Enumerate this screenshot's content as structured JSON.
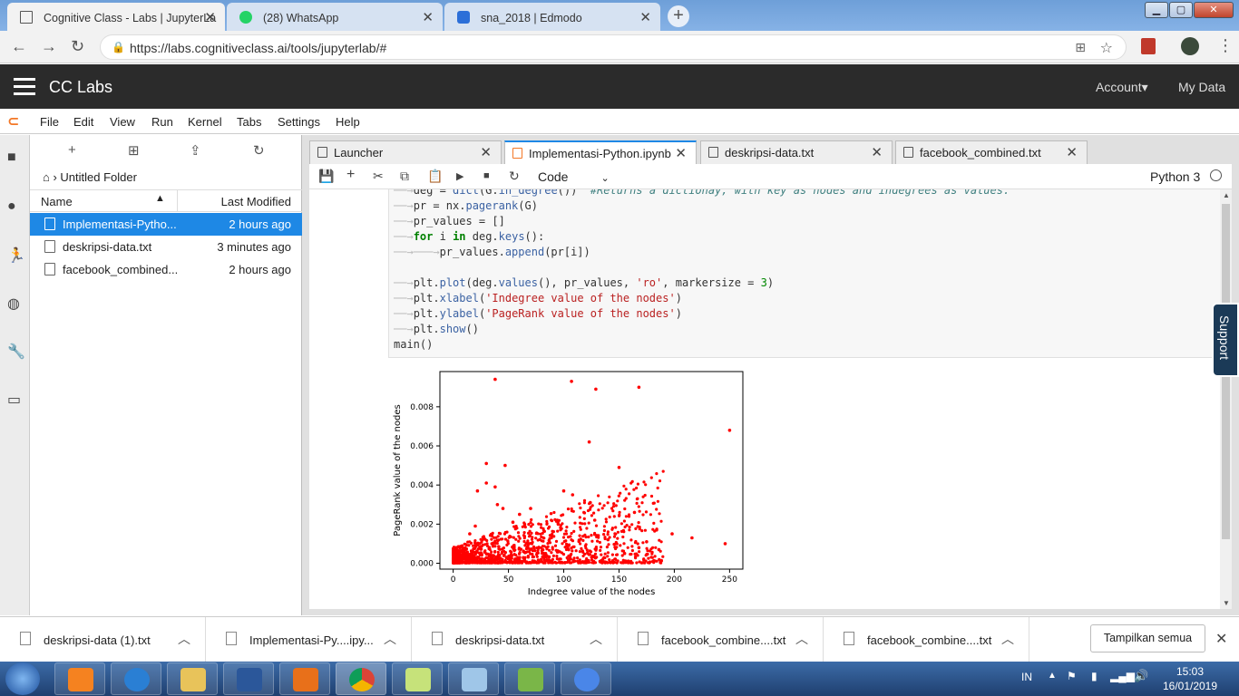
{
  "browser": {
    "tabs": [
      {
        "title": "Cognitive Class - Labs | JupyterLa",
        "favicon_color": "#f58220"
      },
      {
        "title": "(28) WhatsApp",
        "favicon_color": "#25d366"
      },
      {
        "title": "sna_2018 | Edmodo",
        "favicon_color": "#2c6fd8"
      }
    ],
    "url": "https://labs.cognitiveclass.ai/tools/jupyterlab/#"
  },
  "header": {
    "title": "CC Labs",
    "account": "Account",
    "mydata": "My Data"
  },
  "menubar": [
    "File",
    "Edit",
    "View",
    "Run",
    "Kernel",
    "Tabs",
    "Settings",
    "Help"
  ],
  "filebrowser": {
    "breadcrumb": "Untitled Folder",
    "col_name": "Name",
    "col_modified": "Last Modified",
    "files": [
      {
        "name": "Implementasi-Pytho...",
        "modified": "2 hours ago"
      },
      {
        "name": "deskripsi-data.txt",
        "modified": "3 minutes ago"
      },
      {
        "name": "facebook_combined...",
        "modified": "2 hours ago"
      }
    ]
  },
  "doc_tabs": [
    "Launcher",
    "Implementasi-Python.ipynb",
    "deskripsi-data.txt",
    "facebook_combined.txt"
  ],
  "nb_toolbar": {
    "cell_type": "Code",
    "kernel": "Python 3"
  },
  "code_lines": [
    "deg = dict(G.in_degree())  #Returns a dictionay, with key as nodes and indegrees as values.",
    "pr = nx.pagerank(G)",
    "pr_values = []",
    "for i in deg.keys():",
    "pr_values.append(pr[i])",
    "",
    "plt.plot(deg.values(), pr_values, 'ro', markersize = 3)",
    "plt.xlabel('Indegree value of the nodes')",
    "plt.ylabel('PageRank value of the nodes')",
    "plt.show()",
    "main()"
  ],
  "support_label": "Support",
  "chart_data": {
    "type": "scatter",
    "xlabel": "Indegree value of the nodes",
    "ylabel": "PageRank value of the nodes",
    "xlim": [
      -12,
      262
    ],
    "ylim": [
      -0.0003,
      0.0098
    ],
    "xticks": [
      "0",
      "50",
      "100",
      "150",
      "200",
      "250"
    ],
    "yticks": [
      "0.000",
      "0.002",
      "0.004",
      "0.006",
      "0.008"
    ],
    "xtick_values": [
      0,
      50,
      100,
      150,
      200,
      250
    ],
    "ytick_values": [
      0,
      0.002,
      0.004,
      0.006,
      0.008
    ],
    "color": "#ff0000",
    "outliers": [
      [
        38,
        0.0094
      ],
      [
        107,
        0.0093
      ],
      [
        129,
        0.0089
      ],
      [
        168,
        0.009
      ],
      [
        250,
        0.0068
      ],
      [
        123,
        0.0062
      ],
      [
        30,
        0.0051
      ],
      [
        47,
        0.005
      ],
      [
        150,
        0.0049
      ],
      [
        30,
        0.0041
      ],
      [
        38,
        0.0039
      ],
      [
        22,
        0.0037
      ],
      [
        100,
        0.0037
      ],
      [
        108,
        0.0035
      ],
      [
        40,
        0.003
      ],
      [
        124,
        0.0031
      ],
      [
        45,
        0.0028
      ],
      [
        70,
        0.0028
      ],
      [
        164,
        0.0026
      ],
      [
        184,
        0.0017
      ],
      [
        198,
        0.0015
      ],
      [
        216,
        0.0013
      ],
      [
        246,
        0.001
      ],
      [
        175,
        0.0011
      ],
      [
        155,
        0.0005
      ],
      [
        168,
        0.0008
      ],
      [
        186,
        0.0007
      ],
      [
        140,
        0.0012
      ],
      [
        128,
        0.0022
      ],
      [
        95,
        0.002
      ],
      [
        60,
        0.0025
      ],
      [
        54,
        0.0021
      ],
      [
        20,
        0.0019
      ],
      [
        15,
        0.0015
      ]
    ]
  },
  "downloads": [
    "deskripsi-data (1).txt",
    "Implementasi-Py....ipy...",
    "deskripsi-data.txt",
    "facebook_combine....txt",
    "facebook_combine....txt"
  ],
  "show_all": "Tampilkan semua",
  "tray": {
    "lang": "IN",
    "time": "15:03",
    "date": "16/01/2019"
  }
}
